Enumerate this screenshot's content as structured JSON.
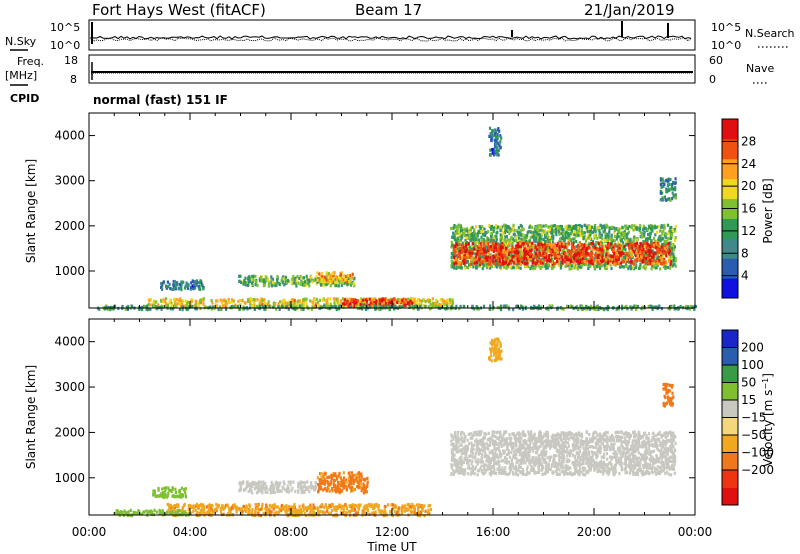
{
  "header": {
    "radar_name": "Fort Hays West (fitACF)",
    "beam": "Beam 17",
    "date": "21/Jan/2019"
  },
  "noise_panel": {
    "left_label": "N.Sky",
    "right_label": "N.Search",
    "left_ticks": [
      "10^5",
      "10^0"
    ],
    "right_ticks": [
      "10^5",
      "10^0"
    ],
    "right_legend_style": "dotted"
  },
  "freq_panel": {
    "left_label_1": "Freq.",
    "left_label_2": "[MHz]",
    "right_label": "Nave",
    "left_ticks": [
      "18",
      "8"
    ],
    "right_ticks": [
      "60",
      "0"
    ],
    "right_legend_style": "dotted"
  },
  "cpid_panel": {
    "label": "CPID",
    "text": "normal (fast) 151 IF"
  },
  "time_axis": {
    "title": "Time UT",
    "tick_labels": [
      "00:00",
      "04:00",
      "08:00",
      "12:00",
      "16:00",
      "20:00",
      "00:00"
    ]
  },
  "colors": {
    "power_scale": [
      "#1010e0",
      "#2a5cb0",
      "#3e8a8a",
      "#2f9a55",
      "#7fc030",
      "#f0d820",
      "#ffa020",
      "#f05010",
      "#e01010"
    ],
    "velocity_scale": [
      "#e01010",
      "#ee3410",
      "#f07818",
      "#f0a820",
      "#f3d77a",
      "#c8c8c0",
      "#7fc030",
      "#3a9a48",
      "#2a5cb0",
      "#1a26c8"
    ]
  },
  "chart_data": [
    {
      "type": "heatmap",
      "name": "power",
      "ylabel": "Slant Range [km]",
      "xlabel": "",
      "xlim": [
        0,
        24
      ],
      "ylim": [
        180,
        4500
      ],
      "y_ticks": [
        1000,
        2000,
        3000,
        4000
      ],
      "x_ticks_hours": [
        0,
        4,
        8,
        12,
        16,
        20,
        24
      ],
      "colorbar": {
        "label": "Power [dB]",
        "ticks": [
          4,
          8,
          12,
          16,
          20,
          24,
          28
        ],
        "range": [
          0,
          32
        ]
      },
      "regions": [
        {
          "t_start": 2.8,
          "t_end": 4.5,
          "r_low": 620,
          "r_high": 820,
          "value": 8
        },
        {
          "t_start": 5.9,
          "t_end": 10.6,
          "r_low": 700,
          "r_high": 920,
          "value": 14
        },
        {
          "t_start": 9.0,
          "t_end": 10.4,
          "r_low": 780,
          "r_high": 1000,
          "value": 22
        },
        {
          "t_start": 2.3,
          "t_end": 14.4,
          "r_low": 230,
          "r_high": 420,
          "value": 20
        },
        {
          "t_start": 10.0,
          "t_end": 12.8,
          "r_low": 250,
          "r_high": 420,
          "value": 28
        },
        {
          "t_start": 14.3,
          "t_end": 23.2,
          "r_low": 1080,
          "r_high": 2050,
          "value": 14
        },
        {
          "t_start": 14.4,
          "t_end": 23.0,
          "r_low": 1180,
          "r_high": 1650,
          "value": 28
        },
        {
          "t_start": 22.6,
          "t_end": 23.2,
          "r_low": 2600,
          "r_high": 3100,
          "value": 10
        },
        {
          "t_start": 15.8,
          "t_end": 16.3,
          "r_low": 3600,
          "r_high": 4200,
          "value": 8
        },
        {
          "t_start": 0.3,
          "t_end": 24.0,
          "r_low": 180,
          "r_high": 260,
          "value": 12
        }
      ]
    },
    {
      "type": "heatmap",
      "name": "velocity",
      "ylabel": "Slant Range [km]",
      "xlabel": "Time UT",
      "xlim": [
        0,
        24
      ],
      "ylim": [
        180,
        4500
      ],
      "y_ticks": [
        1000,
        2000,
        3000,
        4000
      ],
      "x_ticks_hours": [
        0,
        4,
        8,
        12,
        16,
        20,
        24
      ],
      "colorbar": {
        "label": "Velocity [m s^-1]",
        "tick_labels": [
          "200",
          "100",
          "50",
          "15",
          "−15",
          "−50",
          "−100",
          "−200"
        ]
      },
      "regions": [
        {
          "t_start": 2.5,
          "t_end": 3.8,
          "r_low": 600,
          "r_high": 820,
          "value": 30
        },
        {
          "t_start": 5.9,
          "t_end": 9.0,
          "r_low": 700,
          "r_high": 950,
          "value": 0
        },
        {
          "t_start": 9.0,
          "t_end": 11.0,
          "r_low": 700,
          "r_high": 1150,
          "value": -60
        },
        {
          "t_start": 3.0,
          "t_end": 13.5,
          "r_low": 200,
          "r_high": 450,
          "value": -40
        },
        {
          "t_start": 1.0,
          "t_end": 4.0,
          "r_low": 200,
          "r_high": 320,
          "value": 30
        },
        {
          "t_start": 14.3,
          "t_end": 23.2,
          "r_low": 1100,
          "r_high": 2050,
          "value": 0
        },
        {
          "t_start": 22.7,
          "t_end": 23.1,
          "r_low": 2600,
          "r_high": 3100,
          "value": -80
        },
        {
          "t_start": 15.8,
          "t_end": 16.3,
          "r_low": 3600,
          "r_high": 4100,
          "value": -30
        }
      ]
    }
  ]
}
